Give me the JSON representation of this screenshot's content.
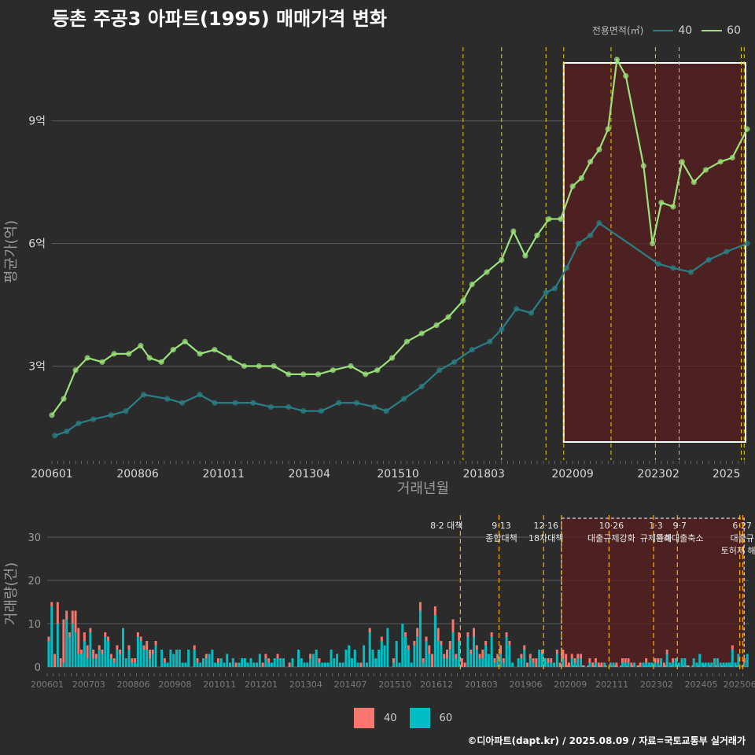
{
  "title": "등촌 주공3 아파트(1995) 매매가격 변화",
  "credit": "©디아파트(dapt.kr) / 2025.08.09 / 자료=국토교통부 실거래가",
  "colors": {
    "bg": "#2b2b2b",
    "grid": "#5a5a5a",
    "s40_line": "#2a7f86",
    "s60_line": "#9be27a",
    "bar40": "#f8766d",
    "bar60": "#00bfc4",
    "policy_line": "#e8d400",
    "policy_line_bottom": "#f5a300",
    "highlight": "#5a1f1f"
  },
  "legend_top": {
    "title": "전용면적(㎡)",
    "items": [
      {
        "label": "40",
        "color": "#2a7f86"
      },
      {
        "label": "60",
        "color": "#9be27a"
      }
    ]
  },
  "legend_bottom": {
    "items": [
      {
        "label": "40",
        "color": "#f8766d"
      },
      {
        "label": "60",
        "color": "#00bfc4"
      }
    ]
  },
  "chart_data": [
    {
      "type": "line",
      "xlabel": "거래년월",
      "ylabel": "평균가(억)",
      "x_range": [
        "2006-01",
        "2025-08"
      ],
      "ylim": [
        0.7,
        10.9
      ],
      "y_ticks": [
        {
          "value": 3,
          "label": "3억"
        },
        {
          "value": 6,
          "label": "6억"
        },
        {
          "value": 9,
          "label": "9억"
        }
      ],
      "x_ticks": [
        "200601",
        "200806",
        "201011",
        "201304",
        "201510",
        "201803",
        "202009",
        "202302",
        "2025"
      ],
      "grid": true,
      "legend": "top-right",
      "highlight_range": [
        "2020-06",
        "2025-08"
      ],
      "policy_dates": [
        "2017-08",
        "2018-09",
        "2019-12",
        "2020-06",
        "2021-10",
        "2023-01",
        "2023-09",
        "2025-06",
        "2025-07"
      ],
      "series": [
        {
          "name": "40",
          "points": [
            [
              "2006-02",
              1.3
            ],
            [
              "2006-06",
              1.4
            ],
            [
              "2006-10",
              1.6
            ],
            [
              "2007-03",
              1.7
            ],
            [
              "2007-09",
              1.8
            ],
            [
              "2008-02",
              1.9
            ],
            [
              "2008-08",
              2.3
            ],
            [
              "2009-04",
              2.2
            ],
            [
              "2009-09",
              2.1
            ],
            [
              "2010-03",
              2.3
            ],
            [
              "2010-08",
              2.1
            ],
            [
              "2011-03",
              2.1
            ],
            [
              "2011-09",
              2.1
            ],
            [
              "2012-03",
              2.0
            ],
            [
              "2012-09",
              2.0
            ],
            [
              "2013-02",
              1.9
            ],
            [
              "2013-08",
              1.9
            ],
            [
              "2014-02",
              2.1
            ],
            [
              "2014-08",
              2.1
            ],
            [
              "2015-02",
              2.0
            ],
            [
              "2015-06",
              1.9
            ],
            [
              "2015-12",
              2.2
            ],
            [
              "2016-06",
              2.5
            ],
            [
              "2016-12",
              2.9
            ],
            [
              "2017-05",
              3.1
            ],
            [
              "2017-11",
              3.4
            ],
            [
              "2018-05",
              3.6
            ],
            [
              "2018-09",
              3.9
            ],
            [
              "2019-02",
              4.4
            ],
            [
              "2019-07",
              4.3
            ],
            [
              "2019-12",
              4.8
            ],
            [
              "2020-03",
              4.9
            ],
            [
              "2020-07",
              5.4
            ],
            [
              "2020-11",
              6.0
            ],
            [
              "2021-03",
              6.2
            ],
            [
              "2021-06",
              6.5
            ],
            [
              "2023-02",
              5.5
            ],
            [
              "2023-07",
              5.4
            ],
            [
              "2024-01",
              5.3
            ],
            [
              "2024-07",
              5.6
            ],
            [
              "2025-01",
              5.8
            ],
            [
              "2025-08",
              6.0
            ]
          ]
        },
        {
          "name": "60",
          "points": [
            [
              "2006-01",
              1.8
            ],
            [
              "2006-05",
              2.2
            ],
            [
              "2006-09",
              2.9
            ],
            [
              "2007-01",
              3.2
            ],
            [
              "2007-06",
              3.1
            ],
            [
              "2007-10",
              3.3
            ],
            [
              "2008-03",
              3.3
            ],
            [
              "2008-07",
              3.5
            ],
            [
              "2008-10",
              3.2
            ],
            [
              "2009-02",
              3.1
            ],
            [
              "2009-06",
              3.4
            ],
            [
              "2009-10",
              3.6
            ],
            [
              "2010-03",
              3.3
            ],
            [
              "2010-08",
              3.4
            ],
            [
              "2011-01",
              3.2
            ],
            [
              "2011-06",
              3.0
            ],
            [
              "2011-11",
              3.0
            ],
            [
              "2012-04",
              3.0
            ],
            [
              "2012-09",
              2.8
            ],
            [
              "2013-02",
              2.8
            ],
            [
              "2013-07",
              2.8
            ],
            [
              "2013-12",
              2.9
            ],
            [
              "2014-06",
              3.0
            ],
            [
              "2014-11",
              2.8
            ],
            [
              "2015-03",
              2.9
            ],
            [
              "2015-08",
              3.2
            ],
            [
              "2016-01",
              3.6
            ],
            [
              "2016-06",
              3.8
            ],
            [
              "2016-11",
              4.0
            ],
            [
              "2017-03",
              4.2
            ],
            [
              "2017-08",
              4.6
            ],
            [
              "2017-11",
              5.0
            ],
            [
              "2018-04",
              5.3
            ],
            [
              "2018-09",
              5.6
            ],
            [
              "2019-01",
              6.3
            ],
            [
              "2019-05",
              5.7
            ],
            [
              "2019-09",
              6.2
            ],
            [
              "2020-01",
              6.6
            ],
            [
              "2020-05",
              6.6
            ],
            [
              "2020-09",
              7.4
            ],
            [
              "2020-12",
              7.6
            ],
            [
              "2021-03",
              8.0
            ],
            [
              "2021-06",
              8.3
            ],
            [
              "2021-09",
              8.8
            ],
            [
              "2021-12",
              10.5
            ],
            [
              "2022-03",
              10.1
            ],
            [
              "2022-09",
              7.9
            ],
            [
              "2022-12",
              6.0
            ],
            [
              "2023-03",
              7.0
            ],
            [
              "2023-07",
              6.9
            ],
            [
              "2023-10",
              8.0
            ],
            [
              "2024-02",
              7.5
            ],
            [
              "2024-06",
              7.8
            ],
            [
              "2024-11",
              8.0
            ],
            [
              "2025-03",
              8.1
            ],
            [
              "2025-08",
              8.8
            ]
          ]
        }
      ]
    },
    {
      "type": "bar",
      "stacked": true,
      "xlabel": "",
      "ylabel": "거래량(건)",
      "ylim": [
        0,
        36
      ],
      "y_ticks": [
        0,
        10,
        20,
        30
      ],
      "x_ticks": [
        "200601",
        "200703",
        "200806",
        "200908",
        "201011",
        "201201",
        "201304",
        "201407",
        "201510",
        "201612",
        "201803",
        "201906",
        "202009",
        "202111",
        "202302",
        "202405",
        "202506"
      ],
      "grid": true,
      "legend": "bottom",
      "highlight_range": [
        "2020-06",
        "2025-08"
      ],
      "policy_markers": [
        {
          "date": "2017-08",
          "labels": [
            "8·2 대책"
          ]
        },
        {
          "date": "2018-09",
          "labels": [
            "9·13",
            "종합대책"
          ]
        },
        {
          "date": "2019-12",
          "labels": [
            "12·16",
            "18차대책"
          ]
        },
        {
          "date": "2020-06",
          "labels": []
        },
        {
          "date": "2021-10",
          "labels": [
            "10·26",
            "대출규제강화"
          ]
        },
        {
          "date": "2023-01",
          "labels": [
            "1·3",
            "규제완화"
          ]
        },
        {
          "date": "2023-09",
          "labels": [
            "9·7",
            "특례대출축소"
          ]
        },
        {
          "date": "2025-06",
          "labels": [
            "6·27",
            "대출규",
            "토허제 해제"
          ]
        },
        {
          "date": "2025-07",
          "labels": []
        }
      ],
      "series_names": [
        "40",
        "60"
      ],
      "months": [
        "2006-01",
        "2025-08"
      ],
      "volume_40": [
        1,
        1,
        3,
        5,
        2,
        10,
        2,
        1,
        3,
        5,
        6,
        1,
        2,
        3,
        1,
        2,
        1,
        1,
        1,
        1,
        1,
        1,
        1,
        1,
        1,
        0,
        0,
        1,
        1,
        1,
        1,
        1,
        1,
        2,
        2,
        1,
        1,
        0,
        0,
        1,
        0,
        0,
        0,
        0,
        0,
        0,
        0,
        0,
        0,
        1,
        1,
        0,
        0,
        1,
        0,
        0,
        0,
        1,
        0,
        0,
        0,
        0,
        0,
        1,
        0,
        0,
        0,
        0,
        0,
        0,
        0,
        0,
        1,
        1,
        1,
        0,
        0,
        1,
        0,
        0,
        0,
        1,
        0,
        0,
        0,
        0,
        0,
        0,
        1,
        0,
        0,
        1,
        0,
        0,
        0,
        0,
        0,
        0,
        0,
        0,
        0,
        0,
        0,
        0,
        0,
        1,
        0,
        0,
        1,
        0,
        0,
        0,
        1,
        0,
        0,
        0,
        1,
        0,
        0,
        0,
        1,
        1,
        0,
        1,
        2,
        2,
        1,
        1,
        2,
        3,
        2,
        3,
        1,
        1,
        2,
        2,
        3,
        1,
        2,
        2,
        1,
        1,
        1,
        2,
        1,
        1,
        2,
        1,
        0,
        1,
        1,
        1,
        2,
        1,
        1,
        1,
        0,
        0,
        0,
        1,
        1,
        1,
        1,
        1,
        2,
        0,
        1,
        0,
        1,
        1,
        0,
        1,
        1,
        2,
        3,
        1,
        1,
        1,
        1,
        1,
        0,
        0,
        1,
        1,
        1,
        1,
        1,
        0,
        0,
        0,
        0,
        1,
        0,
        1,
        1,
        1,
        1,
        0,
        0,
        1,
        0,
        1,
        0,
        0,
        1,
        1,
        0,
        1,
        1,
        0,
        1,
        0,
        0,
        0,
        0,
        0,
        0,
        0,
        0,
        0,
        0,
        0,
        0,
        0,
        0,
        0,
        0,
        0,
        0,
        0,
        1,
        0,
        0,
        0,
        1,
        0,
        0,
        0,
        0,
        0,
        0,
        0,
        0,
        0,
        0,
        0,
        0,
        0,
        0,
        0,
        0,
        0,
        0,
        0,
        0,
        0,
        0,
        0,
        0,
        0,
        0,
        0,
        0,
        0,
        0,
        0,
        0,
        0,
        0,
        0,
        0,
        0,
        0,
        0,
        0,
        0,
        0,
        0,
        0,
        0,
        0,
        0,
        0,
        0,
        0,
        0,
        0,
        0,
        0,
        0,
        0,
        0,
        0,
        0,
        0,
        0,
        0,
        0,
        0,
        0,
        0,
        0,
        0,
        0,
        0,
        0,
        0,
        0,
        0,
        0,
        0,
        0,
        0,
        0,
        0,
        0,
        0,
        0,
        0,
        0,
        0,
        0,
        0,
        0,
        0,
        0,
        0,
        0,
        0,
        0,
        0,
        0,
        0,
        0,
        0,
        0,
        0,
        0,
        0,
        0,
        0,
        0,
        0,
        0,
        0,
        0,
        0,
        0,
        0,
        0,
        0,
        0,
        0,
        0,
        0,
        0,
        0,
        0,
        0,
        0,
        0,
        0,
        0,
        0,
        0,
        0,
        0,
        0,
        0,
        0,
        0,
        0,
        0,
        0,
        0,
        0,
        0,
        0,
        0,
        0,
        0,
        0,
        0,
        0,
        0,
        0,
        0,
        0,
        0,
        0,
        0,
        0,
        0,
        0,
        0,
        0,
        0,
        0,
        0,
        0,
        0,
        0,
        0,
        0,
        0,
        0,
        0,
        0,
        0,
        0,
        0,
        0,
        0,
        0,
        0,
        0,
        0,
        0,
        0,
        0,
        0,
        0,
        0,
        0,
        0,
        0,
        0,
        0,
        0,
        0,
        0,
        0,
        0,
        0,
        0,
        0,
        0,
        0,
        0,
        0,
        0,
        0,
        0,
        0,
        0,
        0,
        0,
        0,
        0,
        0,
        0,
        0,
        0,
        0,
        0,
        0,
        0,
        0,
        0,
        0,
        0,
        0,
        0,
        0
      ]
    }
  ]
}
